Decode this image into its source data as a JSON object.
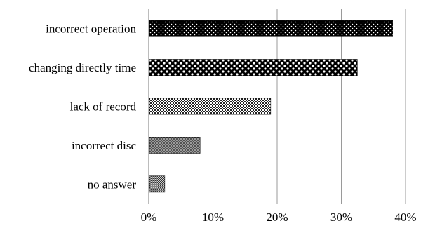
{
  "chart_data": {
    "type": "bar",
    "orientation": "horizontal",
    "categories": [
      "incorrect operation",
      "changing directly time",
      "lack of record",
      "incorrect disc",
      "no answer"
    ],
    "values": [
      38,
      32.5,
      19,
      8,
      2.5
    ],
    "xlim": [
      0,
      40
    ],
    "xticks": [
      0,
      10,
      20,
      30,
      40
    ],
    "tick_labels": [
      "0%",
      "10%",
      "20%",
      "30%",
      "40%"
    ],
    "title": "",
    "xlabel": "",
    "ylabel": "",
    "grid": "vertical",
    "legend": "none",
    "patterns": [
      "pat-dots-dense",
      "pat-dots-large",
      "pat-checker",
      "pat-cross",
      "pat-checker-fine"
    ]
  }
}
